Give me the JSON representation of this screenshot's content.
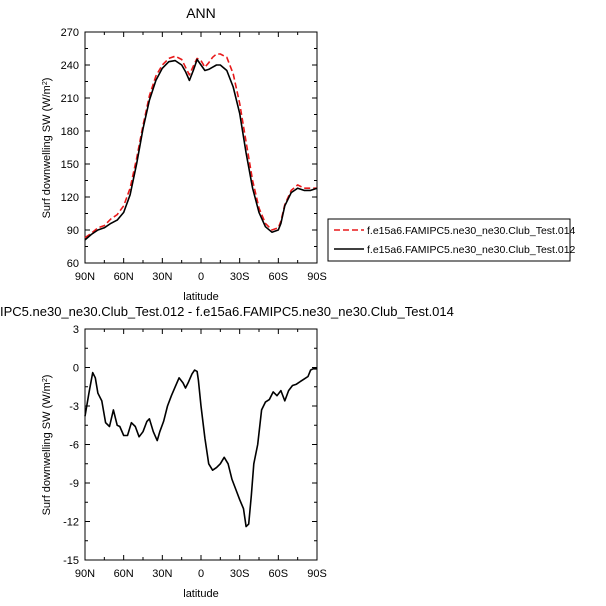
{
  "chart_data": [
    {
      "type": "line",
      "title": "ANN",
      "ylabel": "Surf downwelling SW (W/m",
      "ylabel_sup": "2",
      "ylabel_close": ")",
      "xlabel": "latitude",
      "xlim": [
        90,
        -90
      ],
      "ylim": [
        60,
        270
      ],
      "xticks": [
        90,
        60,
        30,
        0,
        -30,
        -60,
        -90
      ],
      "xtick_labels": [
        "90N",
        "60N",
        "30N",
        "0",
        "30S",
        "60S",
        "90S"
      ],
      "yticks": [
        60,
        90,
        120,
        150,
        180,
        210,
        240,
        270
      ],
      "ytick_labels": [
        "60",
        "90",
        "120",
        "150",
        "180",
        "210",
        "240",
        "270"
      ],
      "legend_position": "right",
      "series": [
        {
          "name": "f.e15a6.FAMIPC5.ne30_ne30.Club_Test.014",
          "color": "#e8191a",
          "dash": "dashed",
          "x": [
            90,
            85,
            80,
            75,
            70,
            65,
            60,
            55,
            50,
            45,
            40,
            35,
            30,
            25,
            20,
            15,
            12,
            9,
            6,
            3,
            0,
            -3,
            -6,
            -9,
            -12,
            -15,
            -20,
            -25,
            -30,
            -35,
            -40,
            -45,
            -50,
            -55,
            -60,
            -62,
            -65,
            -70,
            -75,
            -80,
            -85,
            -90
          ],
          "y": [
            83,
            87,
            92,
            94,
            100,
            104,
            112,
            128,
            155,
            185,
            212,
            230,
            240,
            246,
            248,
            245,
            238,
            231,
            239,
            246,
            244,
            238,
            242,
            247,
            250,
            250,
            247,
            232,
            205,
            170,
            135,
            110,
            96,
            90,
            92,
            98,
            113,
            126,
            131,
            128,
            128,
            128
          ]
        },
        {
          "name": "f.e15a6.FAMIPC5.ne30_ne30.Club_Test.012",
          "color": "#000000",
          "dash": "solid",
          "x": [
            90,
            85,
            80,
            75,
            70,
            65,
            60,
            55,
            50,
            45,
            40,
            35,
            30,
            25,
            20,
            15,
            12,
            9,
            6,
            3,
            0,
            -3,
            -6,
            -9,
            -12,
            -15,
            -20,
            -25,
            -30,
            -35,
            -40,
            -45,
            -50,
            -55,
            -60,
            -62,
            -65,
            -70,
            -75,
            -80,
            -85,
            -90
          ],
          "y": [
            81,
            86,
            90,
            92,
            96,
            99,
            106,
            122,
            150,
            182,
            208,
            226,
            237,
            243,
            244,
            240,
            234,
            226,
            235,
            245,
            240,
            235,
            236,
            238,
            240,
            240,
            235,
            220,
            196,
            160,
            128,
            106,
            93,
            88,
            90,
            96,
            112,
            124,
            128,
            126,
            126,
            128
          ]
        }
      ]
    },
    {
      "type": "line",
      "title": "IPC5.ne30_ne30.Club_Test.012 - f.e15a6.FAMIPC5.ne30_ne30.Club_Test.014",
      "ylabel": "Surf downwelling SW (W/m",
      "ylabel_sup": "2",
      "ylabel_close": ")",
      "xlabel": "latitude",
      "xlim": [
        90,
        -90
      ],
      "ylim": [
        -15,
        3
      ],
      "xticks": [
        90,
        60,
        30,
        0,
        -30,
        -60,
        -90
      ],
      "xtick_labels": [
        "90N",
        "60N",
        "30N",
        "0",
        "30S",
        "60S",
        "90S"
      ],
      "yticks": [
        -15,
        -12,
        -9,
        -6,
        -3,
        0,
        3
      ],
      "ytick_labels": [
        "-15",
        "-12",
        "-9",
        "-6",
        "-3",
        "0",
        "3"
      ],
      "series": [
        {
          "color": "#000000",
          "dash": "solid",
          "x": [
            90,
            87,
            84,
            82,
            80,
            77,
            74,
            71,
            68,
            65,
            63,
            60,
            57,
            54,
            51,
            48,
            45,
            42,
            40,
            37,
            34,
            32,
            29,
            26,
            23,
            20,
            17,
            14,
            12,
            10,
            7,
            5,
            3,
            2,
            0,
            -3,
            -6,
            -9,
            -12,
            -15,
            -18,
            -21,
            -24,
            -27,
            -30,
            -33,
            -35,
            -37,
            -39,
            -41,
            -44,
            -47,
            -50,
            -53,
            -56,
            -59,
            -62,
            -65,
            -68,
            -71,
            -74,
            -77,
            -80,
            -83,
            -85,
            -87,
            -90
          ],
          "y": [
            -3.8,
            -2,
            -0.4,
            -0.8,
            -2,
            -2.6,
            -4.3,
            -4.6,
            -3.3,
            -4.5,
            -4.6,
            -5.3,
            -5.3,
            -4.3,
            -4.6,
            -5.4,
            -5,
            -4.2,
            -4,
            -5,
            -5.7,
            -5,
            -4.2,
            -3,
            -2.2,
            -1.5,
            -0.8,
            -1.2,
            -1.6,
            -1.2,
            -0.5,
            -0.2,
            -0.3,
            -1,
            -3,
            -5.5,
            -7.5,
            -8,
            -7.8,
            -7.5,
            -7,
            -7.5,
            -8.7,
            -9.5,
            -10.3,
            -11,
            -12.4,
            -12.2,
            -10,
            -7.5,
            -6,
            -3.3,
            -2.7,
            -2.5,
            -1.9,
            -2.2,
            -1.8,
            -2.6,
            -1.8,
            -1.4,
            -1.3,
            -1.1,
            -0.9,
            -0.7,
            -0.2,
            -0.1,
            -0.1
          ]
        }
      ]
    }
  ]
}
